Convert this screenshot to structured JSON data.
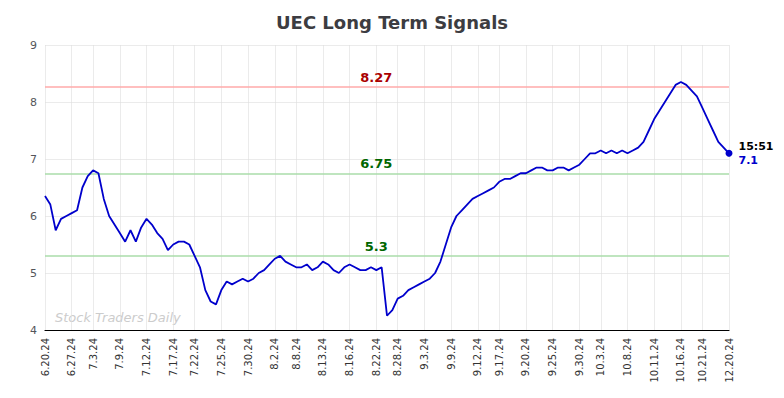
{
  "chart_data": {
    "type": "line",
    "title": "UEC Long Term Signals",
    "categories": [
      "6.20.24",
      null,
      null,
      null,
      null,
      "6.27.24",
      null,
      null,
      null,
      "7.3.24",
      null,
      null,
      null,
      null,
      "7.9.24",
      null,
      null,
      null,
      null,
      "7.12.24",
      null,
      null,
      null,
      null,
      "7.17.24",
      null,
      null,
      null,
      "7.22.24",
      null,
      null,
      null,
      null,
      "7.25.24",
      null,
      null,
      null,
      null,
      "7.30.24",
      null,
      null,
      null,
      null,
      "8.2.24",
      null,
      null,
      null,
      "8.8.24",
      null,
      null,
      null,
      null,
      "8.13.24",
      null,
      null,
      null,
      null,
      "8.16.24",
      null,
      null,
      null,
      null,
      "8.22.24",
      null,
      null,
      null,
      "8.28.24",
      null,
      null,
      null,
      null,
      "9.3.24",
      null,
      null,
      null,
      null,
      "9.9.24",
      null,
      null,
      null,
      null,
      "9.12.24",
      null,
      null,
      null,
      "9.17.24",
      null,
      null,
      null,
      null,
      "9.20.24",
      null,
      null,
      null,
      null,
      "9.25.24",
      null,
      null,
      null,
      null,
      "9.30.24",
      null,
      null,
      null,
      "10.3.24",
      null,
      null,
      null,
      null,
      "10.8.24",
      null,
      null,
      null,
      null,
      "10.11.24",
      null,
      null,
      null,
      null,
      "10.16.24",
      null,
      null,
      null,
      "10.21.24",
      null,
      null,
      null,
      null,
      "12.20.24"
    ],
    "values": [
      6.35,
      6.2,
      5.75,
      5.95,
      6.0,
      6.05,
      6.1,
      6.5,
      6.7,
      6.8,
      6.75,
      6.3,
      6.0,
      5.85,
      5.7,
      5.55,
      5.75,
      5.55,
      5.8,
      5.95,
      5.85,
      5.7,
      5.6,
      5.4,
      5.5,
      5.55,
      5.55,
      5.5,
      5.3,
      5.1,
      4.7,
      4.5,
      4.45,
      4.7,
      4.85,
      4.8,
      4.85,
      4.9,
      4.85,
      4.9,
      5.0,
      5.05,
      5.15,
      5.25,
      5.3,
      5.2,
      5.15,
      5.1,
      5.1,
      5.15,
      5.05,
      5.1,
      5.2,
      5.15,
      5.05,
      5.0,
      5.1,
      5.15,
      5.1,
      5.05,
      5.05,
      5.1,
      5.05,
      5.1,
      4.25,
      4.35,
      4.55,
      4.6,
      4.7,
      4.75,
      4.8,
      4.85,
      4.9,
      5.0,
      5.2,
      5.5,
      5.8,
      6.0,
      6.1,
      6.2,
      6.3,
      6.35,
      6.4,
      6.45,
      6.5,
      6.6,
      6.65,
      6.65,
      6.7,
      6.75,
      6.75,
      6.8,
      6.85,
      6.85,
      6.8,
      6.8,
      6.85,
      6.85,
      6.8,
      6.85,
      6.9,
      7.0,
      7.1,
      7.1,
      7.15,
      7.1,
      7.15,
      7.1,
      7.15,
      7.1,
      7.15,
      7.2,
      7.3,
      7.5,
      7.7,
      7.85,
      8.0,
      8.15,
      8.3,
      8.35,
      8.3,
      8.2,
      8.1,
      7.9,
      7.7,
      7.5,
      7.3,
      7.2,
      7.1
    ],
    "color": "#0000cc",
    "ylim": [
      4,
      9
    ],
    "yticks": [
      4,
      5,
      6,
      7,
      8,
      9
    ],
    "grid": true,
    "annotations": [
      {
        "text": "8.27",
        "y": 8.27,
        "x": "8.22.24",
        "color": "#aa0000",
        "line_color": "#ffaaaa"
      },
      {
        "text": "6.75",
        "y": 6.75,
        "x": "8.22.24",
        "color": "#006600",
        "line_color": "#aaddaa"
      },
      {
        "text": "5.3",
        "y": 5.3,
        "x": "8.22.24",
        "color": "#006600",
        "line_color": "#aaddaa"
      }
    ],
    "last_point_labels": [
      {
        "text": "15:51",
        "color": "#000000"
      },
      {
        "text": "7.1",
        "color": "#0000cc"
      }
    ],
    "watermark": {
      "text": "Stock Traders Daily",
      "color": "#cccccc"
    }
  }
}
